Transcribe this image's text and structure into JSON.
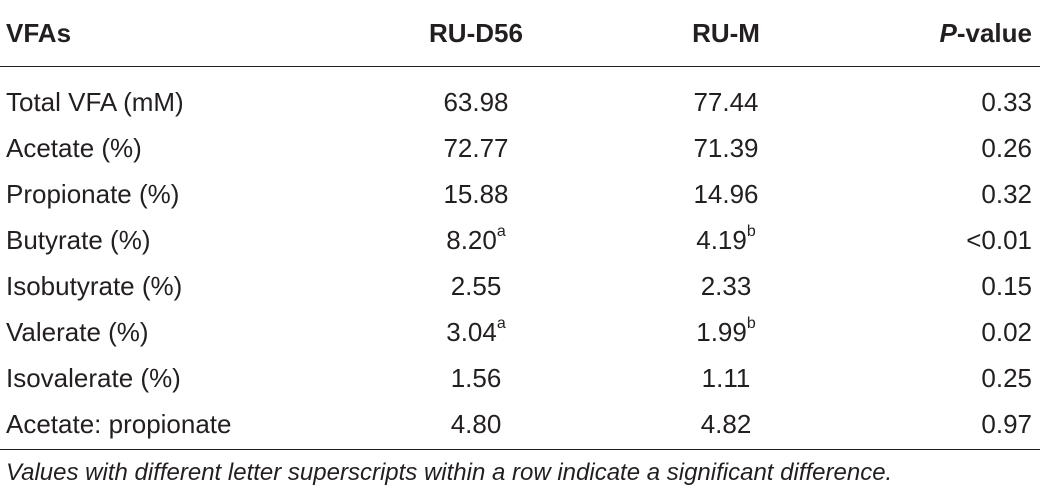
{
  "table": {
    "headers": {
      "col0": "VFAs",
      "col1": "RU-D56",
      "col2": "RU-M",
      "col3_italic": "P",
      "col3_rest": "-value"
    },
    "rows": [
      {
        "name": "Total VFA (mM)",
        "d56": "63.98",
        "d56_sup": "",
        "m": "77.44",
        "m_sup": "",
        "p": "0.33"
      },
      {
        "name": "Acetate (%)",
        "d56": "72.77",
        "d56_sup": "",
        "m": "71.39",
        "m_sup": "",
        "p": "0.26"
      },
      {
        "name": "Propionate (%)",
        "d56": "15.88",
        "d56_sup": "",
        "m": "14.96",
        "m_sup": "",
        "p": "0.32"
      },
      {
        "name": "Butyrate (%)",
        "d56": "8.20",
        "d56_sup": "a",
        "m": "4.19",
        "m_sup": "b",
        "p": "<0.01"
      },
      {
        "name": "Isobutyrate (%)",
        "d56": "2.55",
        "d56_sup": "",
        "m": "2.33",
        "m_sup": "",
        "p": "0.15"
      },
      {
        "name": "Valerate (%)",
        "d56": "3.04",
        "d56_sup": "a",
        "m": "1.99",
        "m_sup": "b",
        "p": "0.02"
      },
      {
        "name": "Isovalerate (%)",
        "d56": "1.56",
        "d56_sup": "",
        "m": "1.11",
        "m_sup": "",
        "p": "0.25"
      },
      {
        "name": "Acetate: propionate",
        "d56": "4.80",
        "d56_sup": "",
        "m": "4.82",
        "m_sup": "",
        "p": "0.97"
      }
    ]
  },
  "footnote": "Values with different letter superscripts within a row indicate a significant difference."
}
